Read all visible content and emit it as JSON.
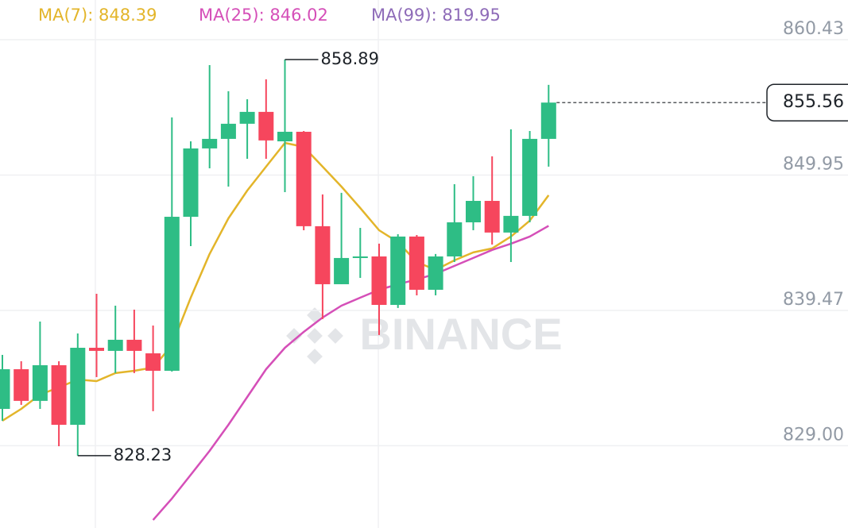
{
  "chart_data": {
    "type": "candlestick",
    "ylim": [
      822.63,
      863.5
    ],
    "yticks": [
      860.43,
      849.95,
      839.47,
      {
        "value": 829,
        "label": "829.00"
      }
    ],
    "grid": true,
    "up_color": "#2ebd85",
    "down_color": "#f6465d",
    "watermark": "BINANCE",
    "ohlc": {
      "open": [
        831.85,
        834.92,
        832.47,
        835.23,
        830.62,
        836.58,
        836.34,
        837.2,
        836.15,
        834.8,
        846.72,
        852.01,
        852.75,
        853.92,
        854.84,
        852.56,
        853.3,
        845.99,
        841.5,
        843.53,
        843.65,
        839.9,
        845.19,
        841.07,
        843.65,
        846.29,
        847.95,
        845.5,
        846.79,
        852.75
      ],
      "high": [
        836.03,
        835.54,
        838.61,
        835.54,
        837.69,
        840.76,
        839.84,
        839.53,
        838.3,
        854.41,
        852.56,
        858.46,
        856.44,
        855.82,
        857.36,
        858.89,
        853.36,
        848.45,
        848.57,
        845.86,
        844.64,
        845.37,
        845.31,
        843.84,
        849.24,
        849.86,
        851.4,
        853.49,
        853.36,
        856.93
      ],
      "low": [
        830.93,
        832.16,
        831.85,
        828.96,
        828.23,
        834.31,
        834.62,
        834.62,
        831.67,
        834.74,
        844.45,
        850.47,
        849.06,
        851.21,
        851.21,
        848.63,
        845.68,
        838.8,
        841.5,
        841.99,
        837.57,
        839.66,
        840.64,
        840.64,
        843.22,
        845.68,
        844.57,
        843.22,
        846.29,
        850.6
      ],
      "close": [
        834.92,
        832.47,
        835.23,
        830.62,
        836.58,
        836.34,
        837.2,
        836.34,
        834.8,
        846.72,
        852.01,
        852.75,
        853.92,
        854.84,
        852.63,
        853.3,
        845.99,
        841.5,
        843.53,
        843.65,
        839.9,
        845.19,
        841.07,
        843.65,
        846.29,
        847.95,
        845.5,
        846.79,
        852.75,
        855.56
      ]
    },
    "series": [
      {
        "name": "MA(7): 848.39",
        "color": "#e3b52a",
        "values": [
          830.93,
          831.85,
          832.96,
          833.51,
          834.12,
          834.0,
          834.62,
          834.8,
          835.05,
          836.77,
          840.46,
          843.84,
          846.6,
          848.75,
          850.6,
          852.44,
          852.13,
          850.6,
          849.06,
          847.4,
          845.68,
          844.76,
          843.22,
          842.61,
          843.35,
          843.96,
          844.27,
          845.19,
          846.42,
          848.39
        ]
      },
      {
        "name": "MA(25): 846.02",
        "color": "#d54fb8",
        "values": [
          null,
          null,
          null,
          null,
          null,
          null,
          null,
          null,
          823.25,
          824.91,
          826.75,
          828.6,
          830.62,
          832.77,
          834.92,
          836.58,
          837.81,
          838.92,
          839.84,
          840.46,
          841.07,
          841.5,
          841.87,
          842.3,
          842.92,
          843.53,
          844.15,
          844.64,
          845.19,
          846.02
        ]
      },
      {
        "name": "MA(99): 819.95",
        "color": "#8e6bb8",
        "values": [
          null,
          null,
          null,
          null,
          null,
          null,
          null,
          null,
          null,
          null,
          null,
          null,
          null,
          null,
          null,
          null,
          null,
          null,
          null,
          null,
          null,
          null,
          null,
          null,
          null,
          null,
          null,
          null,
          null,
          null
        ]
      }
    ]
  }
}
